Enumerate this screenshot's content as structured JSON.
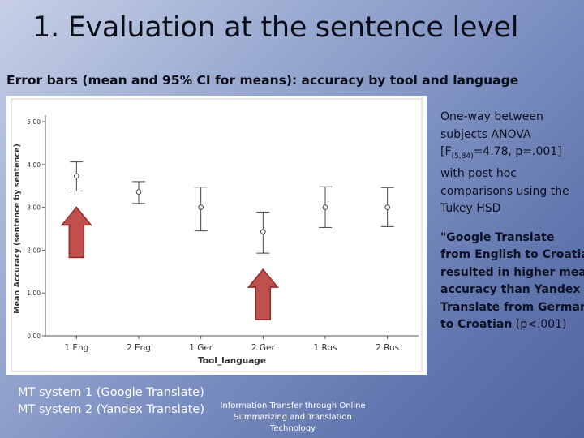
{
  "slide": {
    "title": "1. Evaluation at the sentence level",
    "subtitle": "Error bars (mean and 95% CI for means): accuracy by tool and language",
    "anova_text": {
      "line1": "One-way between subjects ANOVA",
      "f_open": "[F",
      "f_sub": "(5,84)",
      "f_rest": "=4.78, p=.001] with post hoc comparisons using the Tukey HSD"
    },
    "result_text": {
      "main": "\"Google Translate from English to Croatian resulted in higher mean accuracy than Yandex Translate from German to Croatian",
      "pval": " (p<.001)"
    },
    "mt_systems": [
      "MT system 1 (Google Translate)",
      "MT system 2 (Yandex Translate)"
    ],
    "footer": "Information Transfer through Online Summarizing and Translation Technology",
    "colors": {
      "arrow_fill": "#c0504d",
      "arrow_stroke": "#8c2b28",
      "errorbar": "#444444"
    },
    "icons": [
      "up-arrow-icon",
      "up-arrow-icon"
    ]
  },
  "chart_data": {
    "type": "errorbar",
    "xlabel": "Tool_language",
    "ylabel": "Mean Accuracy (sentence by sentence)",
    "categories": [
      "1 Eng",
      "2 Eng",
      "1 Ger",
      "2 Ger",
      "1 Rus",
      "2 Rus"
    ],
    "means": [
      3.73,
      3.36,
      3.0,
      2.43,
      3.0,
      3.0
    ],
    "ci_low": [
      3.38,
      3.09,
      2.45,
      1.93,
      2.53,
      2.55
    ],
    "ci_high": [
      4.06,
      3.6,
      3.47,
      2.89,
      3.48,
      3.46
    ],
    "ylim": [
      0,
      5
    ],
    "yticks": [
      0,
      1,
      2,
      3,
      4,
      5
    ],
    "ytick_labels": [
      "0,00",
      "1,00",
      "2,00",
      "3,00",
      "4,00",
      "5,00"
    ],
    "highlighted_categories": [
      "1 Eng",
      "2 Ger"
    ],
    "grid": false
  }
}
